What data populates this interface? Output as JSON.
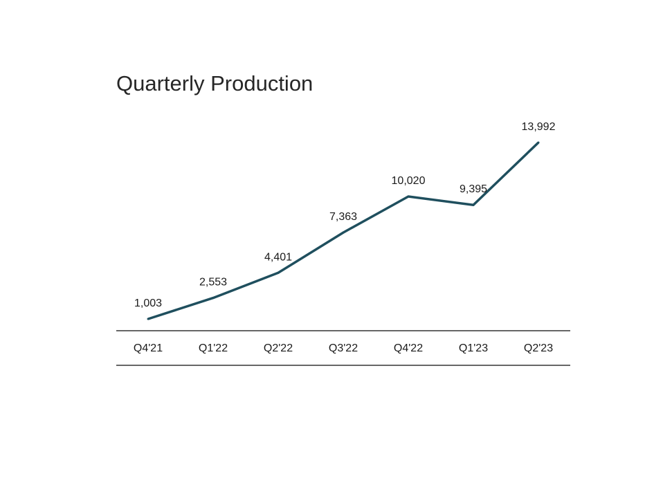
{
  "chart_data": {
    "type": "line",
    "title": "Quarterly Production",
    "categories": [
      "Q4'21",
      "Q1'22",
      "Q2'22",
      "Q3'22",
      "Q4'22",
      "Q1'23",
      "Q2'23"
    ],
    "values": [
      1003,
      2553,
      4401,
      7363,
      10020,
      9395,
      13992
    ],
    "value_labels": [
      "1,003",
      "2,553",
      "4,401",
      "7,363",
      "10,020",
      "9,395",
      "13,992"
    ],
    "xlabel": "",
    "ylabel": "",
    "grid": false,
    "legend": "none",
    "colors": {
      "line": "#1f4f5e",
      "axis": "#333333",
      "text": "#1a1a1a"
    }
  }
}
